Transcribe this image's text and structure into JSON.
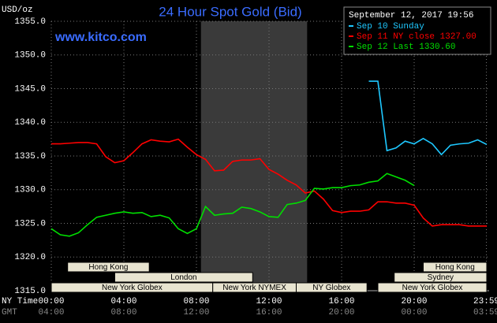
{
  "chart_data": {
    "type": "line",
    "title": "24 Hour Spot Gold (Bid)",
    "source": "www.kitco.com",
    "timestamp": "September 12, 2017 19:56",
    "ylabel": "USD/oz",
    "x_label": "NY Time",
    "x2_label": "GMT",
    "x": [
      0,
      0.5,
      1,
      1.5,
      2,
      2.5,
      3,
      3.5,
      4,
      4.5,
      5,
      5.5,
      6,
      6.5,
      7,
      7.5,
      8,
      8.5,
      9,
      9.5,
      10,
      10.5,
      11,
      11.5,
      12,
      12.5,
      13,
      13.5,
      14,
      14.5,
      15,
      15.5,
      16,
      16.5,
      17,
      17.5,
      18,
      18.5,
      19,
      19.5,
      20,
      20.5,
      21,
      21.5,
      22,
      22.5,
      23,
      23.5,
      24
    ],
    "xlim": [
      0,
      24
    ],
    "xticks": [
      {
        "value": 0,
        "label": "00:00"
      },
      {
        "value": 4,
        "label": "04:00"
      },
      {
        "value": 8,
        "label": "08:00"
      },
      {
        "value": 12,
        "label": "12:00"
      },
      {
        "value": 16,
        "label": "16:00"
      },
      {
        "value": 20,
        "label": "20:00"
      },
      {
        "value": 23.98,
        "label": "23:59"
      }
    ],
    "x2_tick_labels": [
      "04:00",
      "08:00",
      "12:00",
      "16:00",
      "20:00",
      "00:00",
      "03:59"
    ],
    "ylim": [
      1315,
      1355
    ],
    "yticks": [
      {
        "value": 1315,
        "label": "1315.0"
      },
      {
        "value": 1320,
        "label": "1320.0"
      },
      {
        "value": 1325,
        "label": "1325.0"
      },
      {
        "value": 1330,
        "label": "1330.0"
      },
      {
        "value": 1335,
        "label": "1335.0"
      },
      {
        "value": 1340,
        "label": "1340.0"
      },
      {
        "value": 1345,
        "label": "1345.0"
      },
      {
        "value": 1350,
        "label": "1350.0"
      },
      {
        "value": 1355,
        "label": "1355.0"
      }
    ],
    "grid": true,
    "shaded": [
      8.25,
      14.1
    ],
    "series": [
      {
        "name": "Sep 10 Sunday",
        "color": "#1ec8ff",
        "values": [
          null,
          null,
          null,
          null,
          null,
          null,
          null,
          null,
          null,
          null,
          null,
          null,
          null,
          null,
          null,
          null,
          null,
          null,
          null,
          null,
          null,
          null,
          null,
          null,
          null,
          null,
          null,
          null,
          null,
          null,
          null,
          null,
          null,
          null,
          null,
          1346.1,
          1346.1,
          1335.8,
          1336.2,
          1337.2,
          1336.8,
          1337.6,
          1336.8,
          1335.2,
          1336.6,
          1336.8,
          1336.9,
          1337.4,
          1336.7
        ]
      },
      {
        "name": "Sep 11 NY close 1327.00",
        "color": "#ff0000",
        "values": [
          1336.8,
          1336.8,
          1336.9,
          1337.0,
          1337.0,
          1336.8,
          1334.9,
          1334.0,
          1334.3,
          1335.5,
          1336.8,
          1337.4,
          1337.2,
          1337.1,
          1337.5,
          1336.3,
          1335.2,
          1334.5,
          1332.8,
          1332.9,
          1334.2,
          1334.4,
          1334.4,
          1334.6,
          1333.0,
          1332.3,
          1331.4,
          1330.7,
          1329.5,
          1329.8,
          1328.6,
          1326.9,
          1326.6,
          1326.8,
          1326.8,
          1327.0,
          1328.2,
          1328.2,
          1328.0,
          1328.0,
          1327.7,
          1325.8,
          1324.6,
          1324.8,
          1324.8,
          1324.8,
          1324.6,
          1324.6,
          1324.6
        ]
      },
      {
        "name": "Sep 12 Last 1330.60",
        "color": "#00e000",
        "values": [
          1324.2,
          1323.3,
          1323.1,
          1323.6,
          1324.8,
          1325.9,
          1326.2,
          1326.5,
          1326.7,
          1326.5,
          1326.6,
          1326.0,
          1326.2,
          1325.8,
          1324.2,
          1323.5,
          1324.2,
          1327.5,
          1326.2,
          1326.4,
          1326.5,
          1327.4,
          1327.2,
          1326.7,
          1326.0,
          1325.9,
          1327.8,
          1328.0,
          1328.4,
          1330.2,
          1330.1,
          1330.3,
          1330.3,
          1330.6,
          1330.7,
          1331.1,
          1331.3,
          1332.4,
          1331.9,
          1331.4,
          1330.6,
          null,
          null,
          null,
          null,
          null,
          null,
          null,
          null
        ]
      }
    ],
    "sessions": [
      [
        {
          "label": "Hong Kong",
          "start": 0.9,
          "end": 5.4
        },
        {
          "label": "Hong Kong",
          "start": 20.5,
          "end": 24
        }
      ],
      [
        {
          "label": "London",
          "start": 3.5,
          "end": 11.1
        },
        {
          "label": "Sydney",
          "start": 18.9,
          "end": 24
        }
      ],
      [
        {
          "label": "New York Globex",
          "start": 0,
          "end": 8.9
        },
        {
          "label": "New York NYMEX",
          "start": 8.9,
          "end": 13.5
        },
        {
          "label": "NY Globex",
          "start": 13.5,
          "end": 17.4
        },
        {
          "label": "New York Globex",
          "start": 18,
          "end": 24
        }
      ]
    ]
  }
}
